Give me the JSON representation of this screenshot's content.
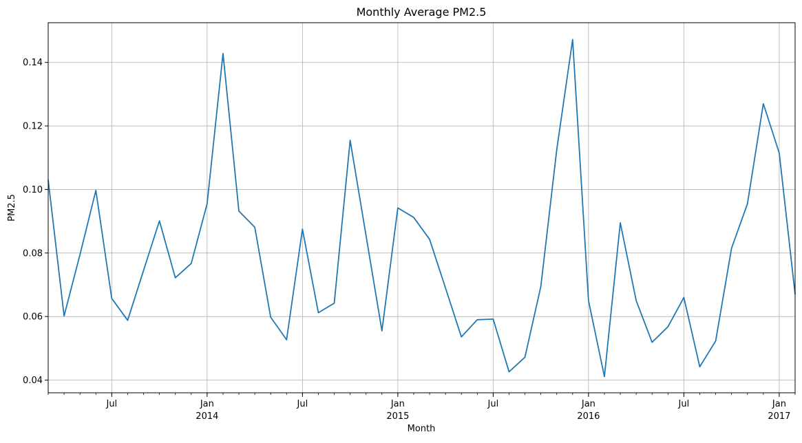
{
  "chart_data": {
    "type": "line",
    "title": "Monthly Average PM2.5",
    "xlabel": "Month",
    "ylabel": "PM2.5",
    "x_range": [
      "2013-03",
      "2017-02"
    ],
    "ylim": [
      0.036,
      0.1525
    ],
    "grid": true,
    "line_color": "#1f77b4",
    "grid_color": "#b0b0b0",
    "x_ticks": [
      {
        "date": "2013-07",
        "label": "Jul",
        "year": ""
      },
      {
        "date": "2014-01",
        "label": "Jan",
        "year": "2014"
      },
      {
        "date": "2014-07",
        "label": "Jul",
        "year": ""
      },
      {
        "date": "2015-01",
        "label": "Jan",
        "year": "2015"
      },
      {
        "date": "2015-07",
        "label": "Jul",
        "year": ""
      },
      {
        "date": "2016-01",
        "label": "Jan",
        "year": "2016"
      },
      {
        "date": "2016-07",
        "label": "Jul",
        "year": ""
      },
      {
        "date": "2017-01",
        "label": "Jan",
        "year": "2017"
      }
    ],
    "y_ticks": [
      {
        "value": 0.04,
        "label": "0.04"
      },
      {
        "value": 0.06,
        "label": "0.06"
      },
      {
        "value": 0.08,
        "label": "0.08"
      },
      {
        "value": 0.1,
        "label": "0.10"
      },
      {
        "value": 0.12,
        "label": "0.12"
      },
      {
        "value": 0.14,
        "label": "0.14"
      }
    ],
    "series": [
      {
        "x": [
          "2013-03",
          "2013-04",
          "2013-05",
          "2013-06",
          "2013-07",
          "2013-08",
          "2013-09",
          "2013-10",
          "2013-11",
          "2013-12",
          "2014-01",
          "2014-02",
          "2014-03",
          "2014-04",
          "2014-05",
          "2014-06",
          "2014-07",
          "2014-08",
          "2014-09",
          "2014-10",
          "2014-11",
          "2014-12",
          "2015-01",
          "2015-02",
          "2015-03",
          "2015-04",
          "2015-05",
          "2015-06",
          "2015-07",
          "2015-08",
          "2015-09",
          "2015-10",
          "2015-11",
          "2015-12",
          "2016-01",
          "2016-02",
          "2016-03",
          "2016-04",
          "2016-05",
          "2016-06",
          "2016-07",
          "2016-08",
          "2016-09",
          "2016-10",
          "2016-11",
          "2016-12",
          "2017-01",
          "2017-02"
        ],
        "values": [
          0.103,
          0.0602,
          0.0795,
          0.0997,
          0.0657,
          0.0588,
          0.0745,
          0.0901,
          0.0722,
          0.0767,
          0.0955,
          0.1428,
          0.0932,
          0.0881,
          0.0598,
          0.0527,
          0.0875,
          0.0612,
          0.0642,
          0.1155,
          0.0855,
          0.0555,
          0.0942,
          0.0912,
          0.0843,
          0.069,
          0.0536,
          0.059,
          0.0592,
          0.0426,
          0.0472,
          0.0695,
          0.1125,
          0.1472,
          0.065,
          0.0411,
          0.0895,
          0.065,
          0.0519,
          0.0568,
          0.066,
          0.0442,
          0.0523,
          0.0815,
          0.0955,
          0.127,
          0.1115,
          0.067
        ]
      }
    ]
  }
}
